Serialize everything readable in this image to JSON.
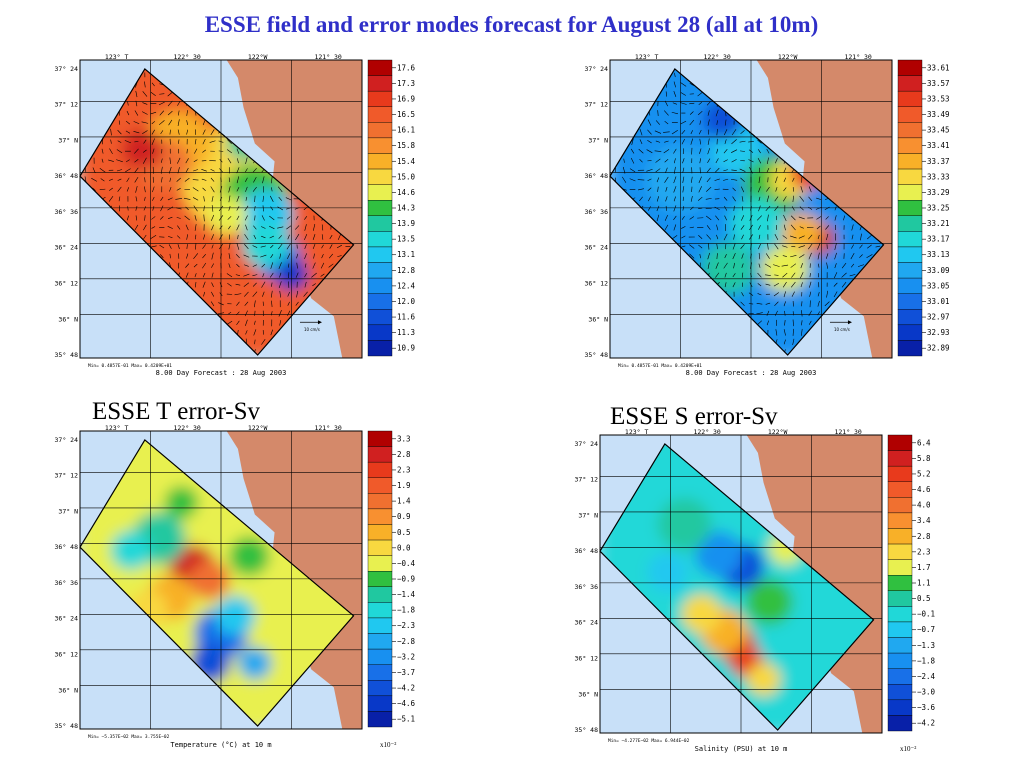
{
  "slide_title": "ESSE field and error modes forecast for August 28  (all at 10m)",
  "captions": {
    "t_error": "ESSE T error-Sv",
    "s_error": "ESSE  S error-Sv"
  },
  "colors": {
    "title": "#2f2fc8",
    "ocean": "#c8e0f8",
    "land": "#d4896a"
  },
  "panels": [
    {
      "id": "temp-field",
      "kind": "field",
      "lon_labels": [
        "123° T",
        "122° 30",
        "122°W",
        "121° 30"
      ],
      "lat_labels": [
        "37° 24",
        "37° 12",
        "37° N",
        "36° 48",
        "36° 36",
        "36° 24",
        "36° 12",
        "36° N",
        "35° 48"
      ],
      "colorbar": [
        "17.6",
        "17.3",
        "16.9",
        "16.5",
        "16.1",
        "15.8",
        "15.4",
        "15.0",
        "14.6",
        "14.3",
        "13.9",
        "13.5",
        "13.1",
        "12.8",
        "12.4",
        "12.0",
        "11.6",
        "11.3",
        "10.9"
      ],
      "colorbar_colors": [
        "#b00000",
        "#d02020",
        "#e83a1c",
        "#f05a2a",
        "#f07030",
        "#f89030",
        "#f8b028",
        "#f8d840",
        "#e8f050",
        "#30c040",
        "#20c8a0",
        "#20d8d8",
        "#20c8f0",
        "#20a8f0",
        "#1890f0",
        "#1870e8",
        "#1050d8",
        "#0838c8",
        "#0820a8"
      ],
      "min_max": "Min= 0.4857E-01   Max= 0.4209E+01",
      "footer": "8.00 Day Forecast : 28 Aug 2003",
      "arrow_label": "10 cm/s",
      "scale_note": ""
    },
    {
      "id": "salt-field",
      "kind": "field",
      "lon_labels": [
        "123° T",
        "122° 30",
        "122°W",
        "121° 30"
      ],
      "lat_labels": [
        "37° 24",
        "37° 12",
        "37° N",
        "36° 48",
        "36° 36",
        "36° 24",
        "36° 12",
        "36° N",
        "35° 48"
      ],
      "colorbar": [
        "33.61",
        "33.57",
        "33.53",
        "33.49",
        "33.45",
        "33.41",
        "33.37",
        "33.33",
        "33.29",
        "33.25",
        "33.21",
        "33.17",
        "33.13",
        "33.09",
        "33.05",
        "33.01",
        "32.97",
        "32.93",
        "32.89"
      ],
      "colorbar_colors": [
        "#b00000",
        "#d02020",
        "#e83a1c",
        "#f05a2a",
        "#f07030",
        "#f89030",
        "#f8b028",
        "#f8d840",
        "#e8f050",
        "#30c040",
        "#20c8a0",
        "#20d8d8",
        "#20c8f0",
        "#20a8f0",
        "#1890f0",
        "#1870e8",
        "#1050d8",
        "#0838c8",
        "#0820a8"
      ],
      "min_max": "Min= 0.4857E-01   Max= 0.4209E+01",
      "footer": "8.00 Day Forecast : 28 Aug 2003",
      "arrow_label": "10 cm/s",
      "scale_note": ""
    },
    {
      "id": "temp-error",
      "kind": "error",
      "lon_labels": [
        "123° T",
        "122° 30",
        "122°W",
        "121° 30"
      ],
      "lat_labels": [
        "37° 24",
        "37° 12",
        "37° N",
        "36° 48",
        "36° 36",
        "36° 24",
        "36° 12",
        "36° N",
        "35° 48"
      ],
      "colorbar": [
        "3.3",
        "2.8",
        "2.3",
        "1.9",
        "1.4",
        "0.9",
        "0.5",
        "0.0",
        "−0.4",
        "−0.9",
        "−1.4",
        "−1.8",
        "−2.3",
        "−2.8",
        "−3.2",
        "−3.7",
        "−4.2",
        "−4.6",
        "−5.1"
      ],
      "colorbar_colors": [
        "#b00000",
        "#d02020",
        "#e83a1c",
        "#f05a2a",
        "#f07030",
        "#f89030",
        "#f8b028",
        "#f8d840",
        "#e8f050",
        "#30c040",
        "#20c8a0",
        "#20d8d8",
        "#20c8f0",
        "#20a8f0",
        "#1890f0",
        "#1870e8",
        "#1050d8",
        "#0838c8",
        "#0820a8"
      ],
      "min_max": "Min= −5.357E−02   Max= 3.755E−02",
      "footer": "Temperature (°C) at 10 m",
      "arrow_label": "",
      "scale_note": "x10⁻²"
    },
    {
      "id": "salt-error",
      "kind": "error",
      "lon_labels": [
        "123° T",
        "122° 30",
        "122°W",
        "121° 30"
      ],
      "lat_labels": [
        "37° 24",
        "37° 12",
        "37° N",
        "36° 48",
        "36° 36",
        "36° 24",
        "36° 12",
        "36° N",
        "35° 48"
      ],
      "colorbar": [
        "6.4",
        "5.8",
        "5.2",
        "4.6",
        "4.0",
        "3.4",
        "2.8",
        "2.3",
        "1.7",
        "1.1",
        "0.5",
        "−0.1",
        "−0.7",
        "−1.3",
        "−1.8",
        "−2.4",
        "−3.0",
        "−3.6",
        "−4.2"
      ],
      "colorbar_colors": [
        "#b00000",
        "#d02020",
        "#e83a1c",
        "#f05a2a",
        "#f07030",
        "#f89030",
        "#f8b028",
        "#f8d840",
        "#e8f050",
        "#30c040",
        "#20c8a0",
        "#20d8d8",
        "#20c8f0",
        "#20a8f0",
        "#1890f0",
        "#1870e8",
        "#1050d8",
        "#0838c8",
        "#0820a8"
      ],
      "min_max": "Min= −4.277E−02   Max= 6.944E−02",
      "footer": "Salinity (PSU) at 10 m",
      "arrow_label": "",
      "scale_note": "x10⁻²"
    }
  ]
}
